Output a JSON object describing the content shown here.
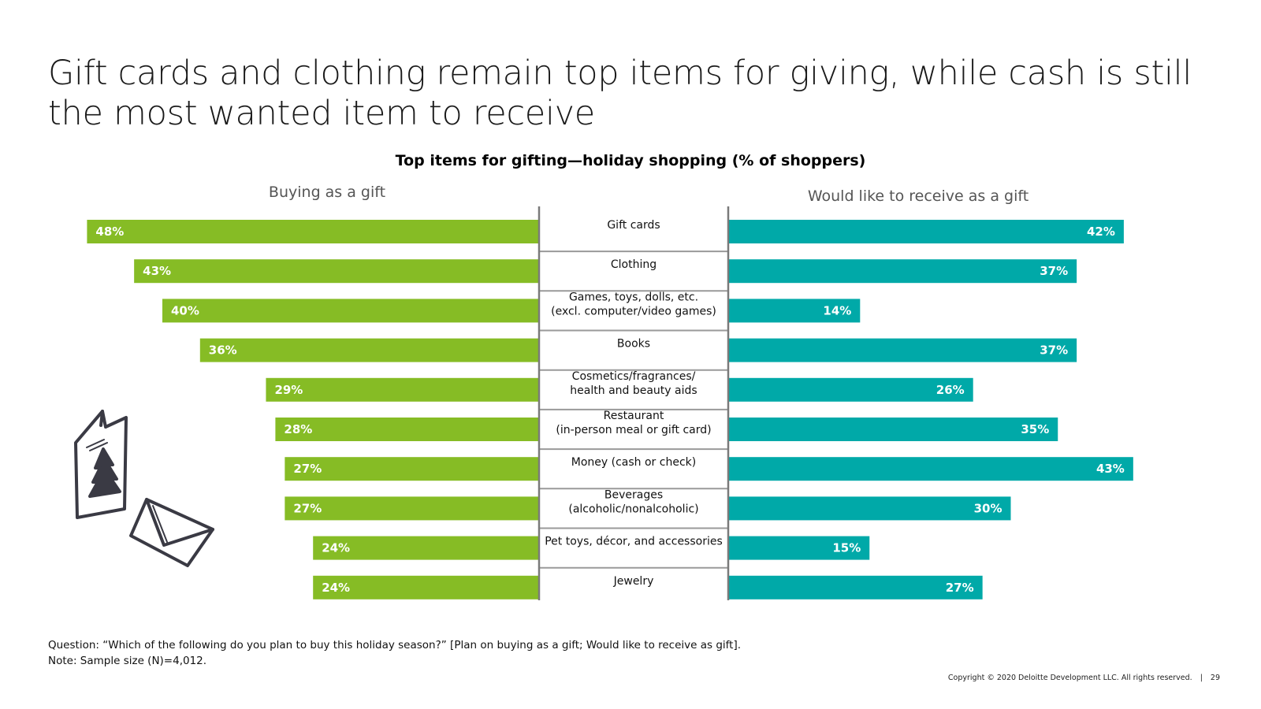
{
  "headline": "Gift cards and clothing remain top items for giving, while cash is still the most wanted item to receive",
  "chart_data": {
    "type": "bar",
    "title": "Top items for gifting—holiday shopping (% of shoppers)",
    "categories": [
      [
        "Gift cards"
      ],
      [
        "Clothing"
      ],
      [
        "Games, toys, dolls, etc.",
        "(excl. computer/video games)"
      ],
      [
        "Books"
      ],
      [
        "Cosmetics/fragrances/",
        "health and beauty aids"
      ],
      [
        "Restaurant",
        "(in-person meal or gift card)"
      ],
      [
        "Money (cash or check)"
      ],
      [
        "Beverages",
        "(alcoholic/nonalcoholic)"
      ],
      [
        "Pet toys, décor, and accessories"
      ],
      [
        "Jewelry"
      ]
    ],
    "series": [
      {
        "name": "Buying as a gift",
        "color": "#86bc25",
        "values": [
          48,
          43,
          40,
          36,
          29,
          28,
          27,
          27,
          24,
          24
        ]
      },
      {
        "name": "Would like to receive as a gift",
        "color": "#00a9a8",
        "values": [
          42,
          37,
          14,
          37,
          26,
          35,
          43,
          30,
          15,
          27
        ]
      }
    ],
    "value_suffix": "%",
    "xlim": [
      0,
      50
    ],
    "grid": false,
    "legend": "above each side"
  },
  "footnotes": {
    "question": "Question: “Which of the following do you plan to buy this holiday season?” [Plan on buying as a gift; Would like to receive as gift].",
    "note": "Note: Sample size (N)=4,012."
  },
  "footer": {
    "copyright": "Copyright © 2020 Deloitte Development LLC. All rights reserved.",
    "separator": "|",
    "page_number": "29"
  },
  "illustration": {
    "icons": [
      "greeting-card-icon",
      "envelope-icon"
    ]
  }
}
